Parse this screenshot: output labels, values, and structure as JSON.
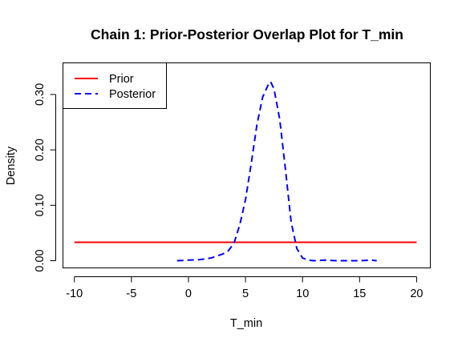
{
  "chart_data": {
    "type": "line",
    "title": "Chain 1: Prior-Posterior Overlap Plot for T_min",
    "xlabel": "T_min",
    "ylabel": "Density",
    "xlim": [
      -11,
      21.2
    ],
    "ylim": [
      -0.013,
      0.357
    ],
    "xticks": [
      -10,
      -5,
      0,
      5,
      10,
      15,
      20
    ],
    "yticks": [
      0.0,
      0.1,
      0.2,
      0.3
    ],
    "ytick_labels": [
      "0.00",
      "0.10",
      "0.20",
      "0.30"
    ],
    "grid": false,
    "legend_position": "top-left",
    "series": [
      {
        "name": "Prior",
        "color": "#ff0000",
        "line_style": "solid",
        "x": [
          -10,
          20
        ],
        "y": [
          0.0333,
          0.0333
        ]
      },
      {
        "name": "Posterior",
        "color": "#0000ff",
        "line_style": "dashed",
        "x": [
          -1.0,
          0.0,
          1.0,
          2.0,
          3.0,
          3.5,
          4.0,
          4.5,
          5.0,
          5.5,
          6.0,
          6.5,
          7.0,
          7.2,
          7.5,
          8.0,
          8.5,
          9.0,
          9.5,
          10.0,
          10.5,
          11.0,
          12.0,
          13.0,
          14.0,
          15.0,
          16.0,
          16.5
        ],
        "y": [
          0.0,
          0.001,
          0.002,
          0.005,
          0.012,
          0.018,
          0.032,
          0.065,
          0.11,
          0.175,
          0.245,
          0.295,
          0.318,
          0.323,
          0.31,
          0.255,
          0.165,
          0.07,
          0.022,
          0.005,
          0.001,
          0.0,
          0.001,
          0.0,
          0.0,
          0.0,
          0.001,
          0.0
        ]
      }
    ]
  }
}
